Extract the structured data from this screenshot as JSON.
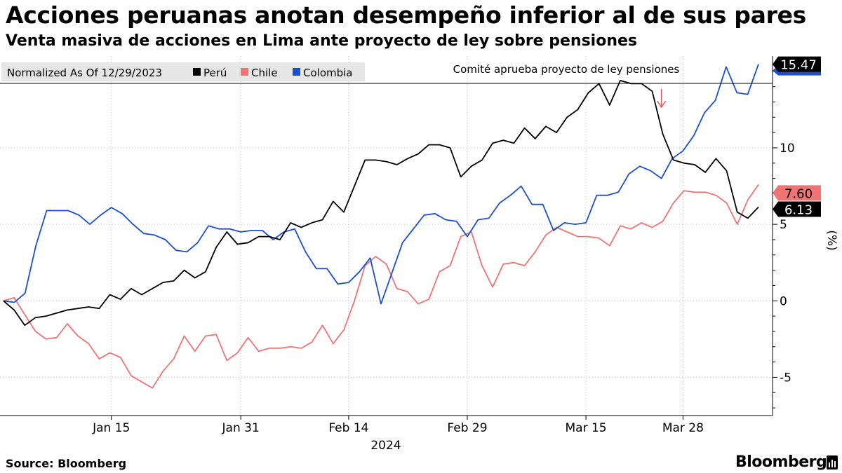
{
  "header": {
    "title": "Acciones peruanas anotan desempeño inferior al de sus pares",
    "subtitle": "Venta masiva de acciones en Lima ante proyecto de ley sobre pensiones"
  },
  "footer": {
    "source": "Source: Bloomberg",
    "brand": "Bloomberg"
  },
  "chart_data": {
    "type": "line",
    "legend_note": "Normalized As Of 12/29/2023",
    "annotation": "Comité aprueba proyecto de ley pensiones",
    "annotation_x": 61,
    "x_axis": {
      "year_label": "2024",
      "ticks": [
        {
          "label": "Jan 15",
          "x": 10
        },
        {
          "label": "Jan 31",
          "x": 22
        },
        {
          "label": "Feb 14",
          "x": 32
        },
        {
          "label": "Feb 29",
          "x": 43
        },
        {
          "label": "Mar 15",
          "x": 54
        },
        {
          "label": "Mar 28",
          "x": 63
        }
      ],
      "range": [
        0,
        70
      ]
    },
    "y_axis": {
      "label": "(%)",
      "ticks": [
        -5,
        0,
        5,
        10
      ],
      "range": [
        -7.5,
        16
      ]
    },
    "colors": {
      "Perú": "#000000",
      "Chile": "#f07474",
      "Colombia": "#1a4fcf"
    },
    "series": [
      {
        "name": "Perú",
        "last_value_label": "6.13",
        "values": [
          0,
          -0.6,
          -1.6,
          -1.1,
          -1.0,
          -0.8,
          -0.6,
          -0.5,
          -0.4,
          -0.5,
          0.4,
          0.1,
          0.8,
          0.4,
          0.8,
          1.2,
          1.3,
          2.0,
          1.5,
          1.9,
          3.5,
          4.5,
          3.7,
          3.8,
          4.2,
          4.2,
          4.0,
          5.1,
          4.8,
          5.1,
          5.3,
          6.5,
          5.8,
          7.5,
          9.2,
          9.2,
          9.1,
          8.9,
          9.3,
          9.6,
          10.2,
          10.2,
          10.0,
          8.1,
          8.8,
          9.2,
          10.3,
          10.5,
          10.3,
          11.3,
          10.6,
          11.4,
          11.0,
          12.0,
          12.5,
          13.6,
          14.2,
          12.8,
          14.4,
          14.2,
          14.2,
          13.7,
          10.9,
          9.2,
          9.0,
          8.9,
          8.4,
          9.3,
          8.5,
          5.8,
          5.4,
          6.13
        ]
      },
      {
        "name": "Chile",
        "last_value_label": "7.60",
        "values": [
          0,
          0.2,
          -0.9,
          -2.0,
          -2.5,
          -2.4,
          -1.5,
          -2.3,
          -2.8,
          -3.8,
          -3.4,
          -3.7,
          -4.9,
          -5.3,
          -5.7,
          -4.6,
          -3.8,
          -2.3,
          -3.3,
          -2.3,
          -2.2,
          -3.9,
          -3.4,
          -2.4,
          -3.3,
          -3.1,
          -3.1,
          -3.0,
          -3.1,
          -2.7,
          -1.6,
          -2.8,
          -1.9,
          0.0,
          2.3,
          2.9,
          2.4,
          0.8,
          0.6,
          -0.2,
          0.1,
          1.9,
          2.3,
          4.2,
          4.5,
          2.3,
          0.9,
          2.4,
          2.5,
          2.3,
          3.2,
          4.3,
          4.8,
          4.5,
          4.2,
          4.2,
          4.1,
          3.6,
          4.9,
          4.7,
          5.1,
          4.8,
          5.2,
          6.4,
          7.2,
          7.1,
          7.1,
          6.9,
          6.4,
          5.0,
          6.6,
          7.6
        ]
      },
      {
        "name": "Colombia",
        "last_value_label": "15.47",
        "values": [
          0,
          -0.1,
          0.5,
          3.6,
          5.9,
          5.9,
          5.9,
          5.6,
          5.0,
          5.6,
          6.1,
          5.7,
          5.0,
          4.4,
          4.3,
          4.0,
          3.3,
          3.2,
          3.8,
          4.9,
          4.7,
          4.7,
          4.5,
          4.6,
          4.6,
          4.0,
          4.5,
          4.7,
          3.2,
          2.1,
          2.1,
          1.1,
          1.2,
          1.9,
          2.8,
          -0.2,
          1.8,
          3.8,
          4.7,
          5.6,
          5.7,
          5.3,
          5.2,
          4.2,
          5.3,
          5.4,
          6.4,
          6.9,
          7.5,
          6.3,
          6.3,
          4.6,
          5.1,
          5.0,
          5.1,
          6.9,
          6.9,
          7.1,
          8.3,
          8.8,
          8.5,
          8.0,
          9.3,
          9.8,
          10.8,
          12.3,
          13.1,
          15.3,
          13.6,
          13.5,
          15.47
        ]
      }
    ]
  }
}
